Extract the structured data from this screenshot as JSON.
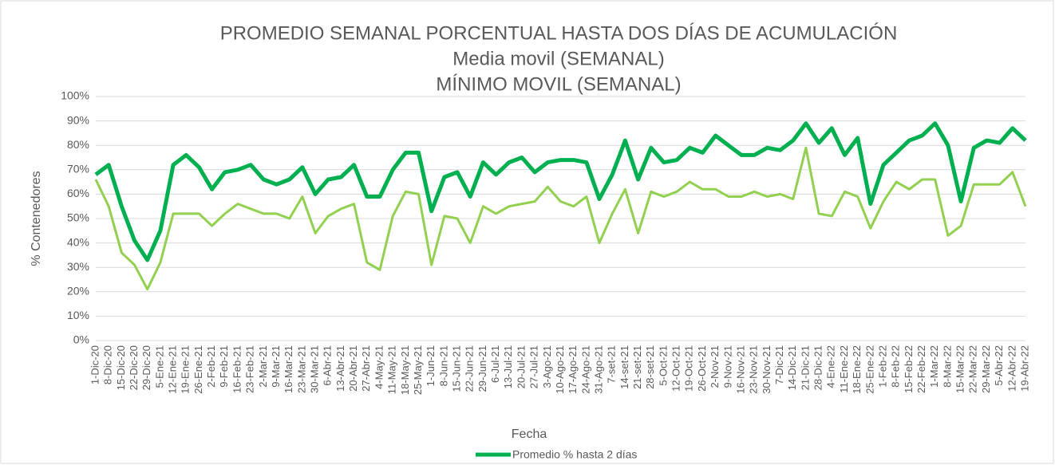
{
  "chart_data": {
    "type": "line",
    "title": "PROMEDIO SEMANAL PORCENTUAL HASTA DOS DÍAS DE ACUMULACIÓN",
    "subtitle": [
      "Media movil (SEMANAL)",
      "MÍNIMO MOVIL (SEMANAL)"
    ],
    "x_label": "Fecha",
    "y_label": "% Contenedores",
    "categories": [
      "1-Dic-20",
      "8-Dic-20",
      "15-Dic-20",
      "22-Dic-20",
      "29-Dic-20",
      "5-Ene-21",
      "12-Ene-21",
      "19-Ene-21",
      "26-Ene-21",
      "2-Feb-21",
      "9-Feb-21",
      "16-Feb-21",
      "23-Feb-21",
      "2-Mar-21",
      "9-Mar-21",
      "16-Mar-21",
      "23-Mar-21",
      "30-Mar-21",
      "6-Abr-21",
      "13-Abr-21",
      "20-Abr-21",
      "27-Abr-21",
      "4-May-21",
      "11-May-21",
      "18-May-21",
      "25-May-21",
      "1-Jun-21",
      "8-Jun-21",
      "15-Jun-21",
      "22-Jun-21",
      "29-Jun-21",
      "6-Jul-21",
      "13-Jul-21",
      "20-Jul-21",
      "27-Jul-21",
      "3-Ago-21",
      "10-Ago-21",
      "17-Ago-21",
      "24-Ago-21",
      "31-Ago-21",
      "7-set-21",
      "14-set-21",
      "21-set-21",
      "28-set-21",
      "5-Oct-21",
      "12-Oct-21",
      "19-Oct-21",
      "26-Oct-21",
      "2-Nov-21",
      "9-Nov-21",
      "16-Nov-21",
      "23-Nov-21",
      "30-Nov-21",
      "7-Dic-21",
      "14-Dic-21",
      "21-Dic-21",
      "28-Dic-21",
      "4-Ene-22",
      "11-Ene-22",
      "18-Ene-22",
      "25-Ene-22",
      "1-Feb-22",
      "8-Feb-22",
      "15-Feb-22",
      "22-Feb-22",
      "1-Mar-22",
      "8-Mar-22",
      "15-Mar-22",
      "22-Mar-22",
      "29-Mar-22",
      "5-Abr-22",
      "12-Abr-22",
      "19-Abr-22"
    ],
    "series": [
      {
        "name": "Promedio % hasta 2 días",
        "color": "#00b050",
        "values": [
          68,
          72,
          55,
          41,
          33,
          45,
          72,
          76,
          71,
          62,
          69,
          70,
          72,
          66,
          64,
          66,
          71,
          60,
          66,
          67,
          72,
          59,
          59,
          70,
          77,
          77,
          53,
          67,
          69,
          59,
          73,
          68,
          73,
          75,
          69,
          73,
          74,
          74,
          73,
          58,
          68,
          82,
          66,
          79,
          73,
          74,
          79,
          77,
          84,
          80,
          76,
          76,
          79,
          78,
          82,
          89,
          81,
          87,
          76,
          83,
          56,
          72,
          77,
          82,
          84,
          89,
          80,
          57,
          79,
          82,
          81,
          87,
          82
        ]
      },
      {
        "color": "#92d050",
        "values": [
          66,
          55,
          36,
          31,
          21,
          32,
          52,
          52,
          52,
          47,
          52,
          56,
          54,
          52,
          52,
          50,
          59,
          44,
          51,
          54,
          56,
          32,
          29,
          51,
          61,
          60,
          31,
          51,
          50,
          40,
          55,
          52,
          55,
          56,
          57,
          63,
          57,
          55,
          59,
          40,
          52,
          62,
          44,
          61,
          59,
          61,
          65,
          62,
          62,
          59,
          59,
          61,
          59,
          60,
          58,
          79,
          52,
          51,
          61,
          59,
          46,
          57,
          65,
          62,
          66,
          66,
          43,
          47,
          64,
          64,
          64,
          69,
          55
        ]
      }
    ],
    "ylim": [
      0,
      100
    ],
    "yticks": [
      {
        "value": 0,
        "label": "0%"
      },
      {
        "value": 10,
        "label": "10%"
      },
      {
        "value": 20,
        "label": "20%"
      },
      {
        "value": 30,
        "label": "30%"
      },
      {
        "value": 40,
        "label": "40%"
      },
      {
        "value": 50,
        "label": "50%"
      },
      {
        "value": 60,
        "label": "60%"
      },
      {
        "value": 70,
        "label": "70%"
      },
      {
        "value": 80,
        "label": "80%"
      },
      {
        "value": 90,
        "label": "90%"
      },
      {
        "value": 100,
        "label": "100%"
      }
    ],
    "grid": true,
    "legend": "bottom"
  }
}
